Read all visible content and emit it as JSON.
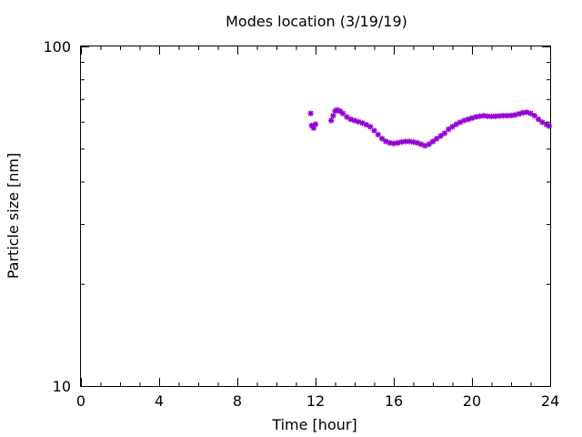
{
  "chart_data": {
    "type": "scatter",
    "title": "Modes location (3/19/19)",
    "xlabel": "Time [hour]",
    "ylabel": "Particle size [nm]",
    "xlim": [
      0,
      24
    ],
    "ylim": [
      10,
      100
    ],
    "yscale": "log",
    "grid": false,
    "legend": "none",
    "x_ticks": [
      "0",
      "4",
      "8",
      "12",
      "16",
      "20",
      "24"
    ],
    "x_tick_values": [
      0,
      4,
      8,
      12,
      16,
      20,
      24
    ],
    "y_ticks": [
      "10",
      "100"
    ],
    "y_tick_values": [
      10,
      100
    ],
    "marker_color": "#9400D3",
    "series": [
      {
        "x": [
          11.75,
          11.8,
          11.9,
          12.0,
          12.8,
          12.9,
          13.0,
          13.1,
          13.25,
          13.4,
          13.6,
          13.8,
          14.0,
          14.2,
          14.4,
          14.6,
          14.8,
          15.0,
          15.2,
          15.4,
          15.6,
          15.8,
          16.0,
          16.2,
          16.4,
          16.6,
          16.8,
          17.0,
          17.2,
          17.4,
          17.6,
          17.8,
          18.0,
          18.2,
          18.4,
          18.6,
          18.8,
          19.0,
          19.2,
          19.4,
          19.6,
          19.8,
          20.0,
          20.2,
          20.4,
          20.6,
          20.8,
          21.0,
          21.2,
          21.4,
          21.6,
          21.8,
          22.0,
          22.2,
          22.4,
          22.6,
          22.8,
          23.0,
          23.2,
          23.4,
          23.6,
          23.8,
          23.95
        ],
        "y": [
          63.5,
          58.5,
          57.5,
          59.0,
          60.5,
          62.5,
          64.5,
          65.0,
          64.5,
          63.5,
          62.0,
          61.0,
          60.5,
          60.0,
          59.5,
          58.8,
          58.0,
          56.5,
          55.0,
          53.5,
          52.5,
          52.0,
          51.8,
          52.0,
          52.3,
          52.5,
          52.5,
          52.3,
          52.0,
          51.5,
          51.0,
          51.5,
          52.5,
          53.5,
          54.5,
          55.5,
          57.0,
          58.0,
          59.0,
          59.8,
          60.5,
          61.0,
          61.5,
          62.0,
          62.3,
          62.5,
          62.3,
          62.2,
          62.3,
          62.4,
          62.5,
          62.5,
          62.6,
          62.8,
          63.3,
          63.8,
          64.0,
          63.5,
          62.5,
          61.0,
          59.8,
          59.0,
          58.3
        ]
      }
    ]
  }
}
